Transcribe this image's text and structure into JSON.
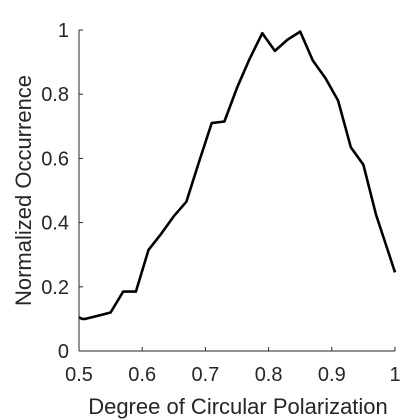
{
  "chart_data": {
    "type": "line",
    "title": "",
    "xlabel": "Degree of Circular Polarization",
    "ylabel": "Normalized Occurrence",
    "xlim": [
      0.5,
      1
    ],
    "ylim": [
      0,
      1
    ],
    "xticks": [
      0.5,
      0.6,
      0.7,
      0.8,
      0.9,
      1
    ],
    "xtick_labels": [
      "0.5",
      "0.6",
      "0.7",
      "0.8",
      "0.9",
      "1"
    ],
    "yticks": [
      0,
      0.2,
      0.4,
      0.6,
      0.8,
      1
    ],
    "ytick_labels": [
      "0",
      "0.2",
      "0.4",
      "0.6",
      "0.8",
      "1"
    ],
    "grid": false,
    "series": [
      {
        "color": "#000000",
        "x": [
          0.5,
          0.505,
          0.51,
          0.53,
          0.55,
          0.57,
          0.59,
          0.61,
          0.63,
          0.65,
          0.67,
          0.69,
          0.71,
          0.73,
          0.75,
          0.77,
          0.79,
          0.81,
          0.83,
          0.85,
          0.87,
          0.89,
          0.91,
          0.93,
          0.95,
          0.97,
          0.99,
          1.0
        ],
        "y": [
          0.105,
          0.1,
          0.1,
          0.11,
          0.12,
          0.185,
          0.185,
          0.315,
          0.365,
          0.42,
          0.465,
          0.59,
          0.71,
          0.715,
          0.82,
          0.91,
          0.99,
          0.935,
          0.97,
          0.995,
          0.905,
          0.85,
          0.78,
          0.635,
          0.58,
          0.425,
          0.305,
          0.245
        ]
      }
    ]
  }
}
